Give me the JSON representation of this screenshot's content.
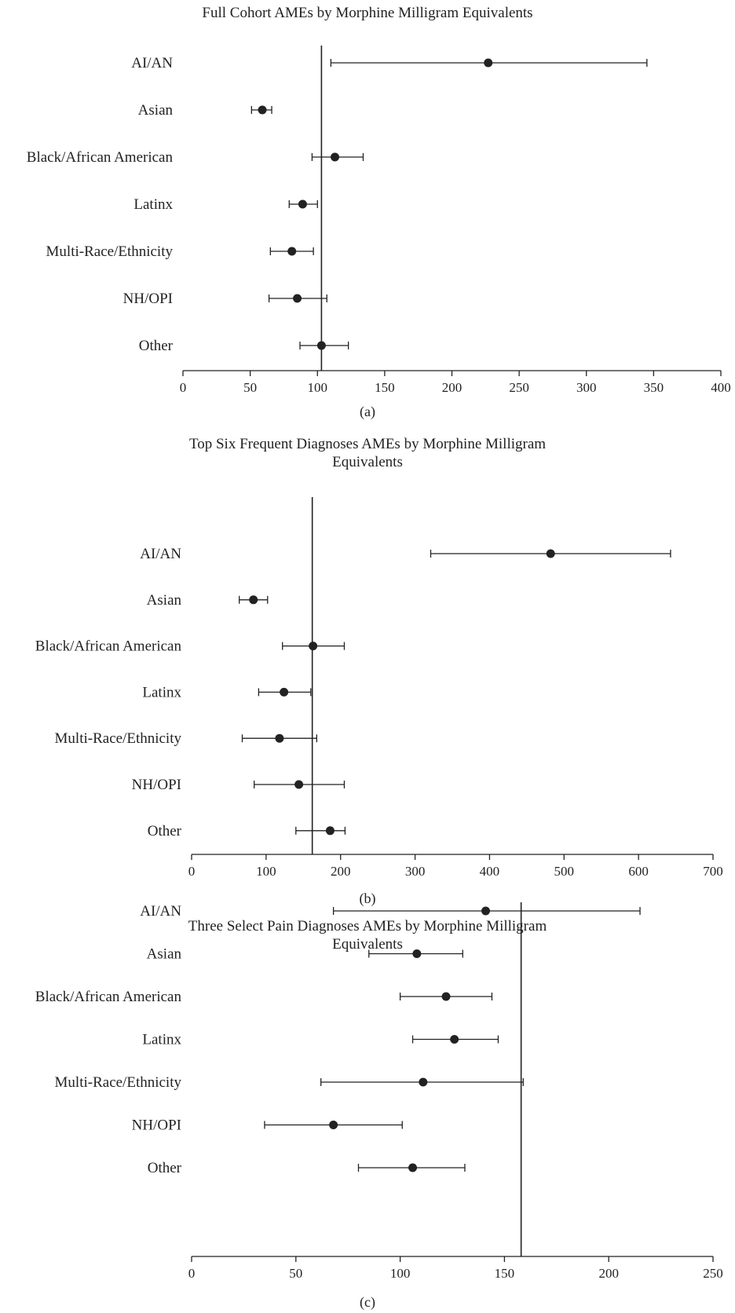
{
  "chart_data": [
    {
      "type": "scatter",
      "title_lines": [
        "Full Cohort AMEs by Morphine Milligram Equivalents"
      ],
      "panel_label": "(a)",
      "categories": [
        "AI/AN",
        "Asian",
        "Black/African American",
        "Latinx",
        "Multi-Race/Ethnicity",
        "NH/OPI",
        "Other"
      ],
      "estimates": [
        227,
        59,
        113,
        89,
        81,
        85,
        103
      ],
      "ci_low": [
        110,
        51,
        96,
        79,
        65,
        64,
        87
      ],
      "ci_high": [
        345,
        66,
        134,
        100,
        97,
        107,
        123
      ],
      "reference_line": 103,
      "xlim": [
        0,
        400
      ],
      "xticks": [
        "0",
        "50",
        "100",
        "150",
        "200",
        "250",
        "300",
        "350",
        "400"
      ],
      "xtick_values": [
        0,
        50,
        100,
        150,
        200,
        250,
        300,
        350,
        400
      ],
      "grid": false,
      "legend": "none"
    },
    {
      "type": "scatter",
      "title_lines": [
        "Top Six Frequent Diagnoses AMEs by Morphine Milligram",
        "Equivalents"
      ],
      "panel_label": "(b)",
      "categories": [
        "AI/AN",
        "Asian",
        "Black/African American",
        "Latinx",
        "Multi-Race/Ethnicity",
        "NH/OPI",
        "Other"
      ],
      "estimates": [
        482,
        83,
        163,
        124,
        118,
        144,
        186
      ],
      "ci_low": [
        321,
        64,
        122,
        90,
        68,
        84,
        140
      ],
      "ci_high": [
        643,
        102,
        205,
        160,
        168,
        205,
        206
      ],
      "reference_line": 162,
      "xlim": [
        0,
        700
      ],
      "xticks": [
        "0",
        "100",
        "200",
        "300",
        "400",
        "500",
        "600",
        "700"
      ],
      "xtick_values": [
        0,
        100,
        200,
        300,
        400,
        500,
        600,
        700
      ],
      "grid": false,
      "legend": "none"
    },
    {
      "type": "scatter",
      "title_lines": [
        "Three Select Pain Diagnoses AMEs by Morphine Milligram",
        "Equivalents"
      ],
      "panel_label": "(c)",
      "categories": [
        "AI/AN",
        "Asian",
        "Black/African American",
        "Latinx",
        "Multi-Race/Ethnicity",
        "NH/OPI",
        "Other"
      ],
      "estimates": [
        141,
        108,
        122,
        126,
        111,
        68,
        106
      ],
      "ci_low": [
        68,
        85,
        100,
        106,
        62,
        35,
        80
      ],
      "ci_high": [
        215,
        130,
        144,
        147,
        159,
        101,
        131
      ],
      "reference_line": 158,
      "xlim": [
        0,
        250
      ],
      "xticks": [
        "0",
        "50",
        "100",
        "150",
        "200",
        "250"
      ],
      "xtick_values": [
        0,
        50,
        100,
        150,
        200,
        250
      ],
      "grid": false,
      "legend": "none"
    }
  ]
}
